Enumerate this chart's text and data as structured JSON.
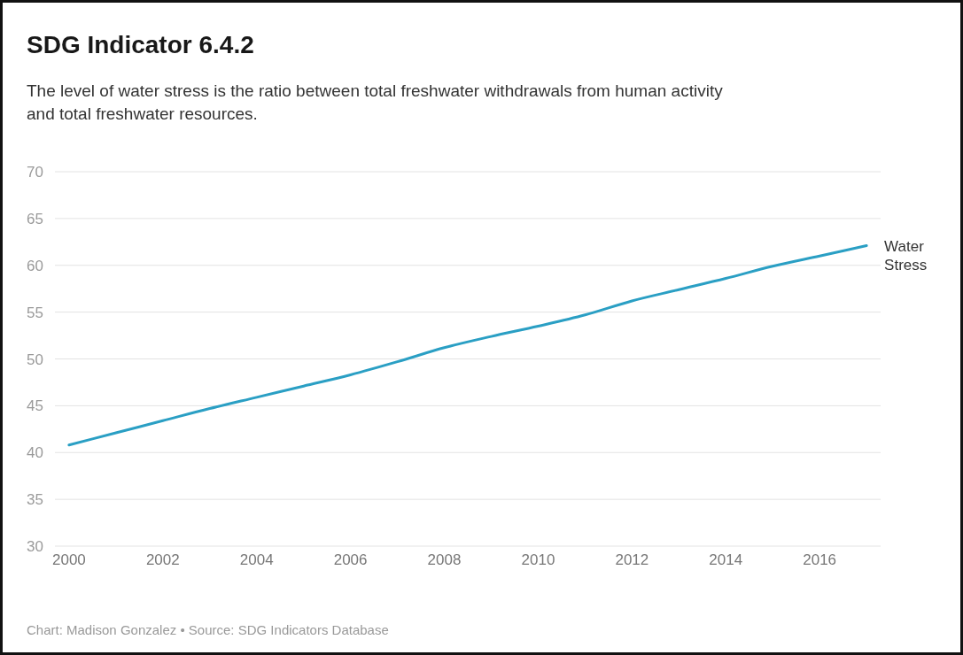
{
  "chart_data": {
    "type": "line",
    "title": "SDG Indicator 6.4.2",
    "subtitle": "The level of water stress is the ratio between total freshwater withdrawals from human activity and total freshwater resources.",
    "x": [
      2000,
      2001,
      2002,
      2003,
      2004,
      2005,
      2006,
      2007,
      2008,
      2009,
      2010,
      2011,
      2012,
      2013,
      2014,
      2015,
      2016,
      2017
    ],
    "series": [
      {
        "name": "Water Stress",
        "color": "#2a9fc4",
        "values": [
          40.8,
          42.1,
          43.4,
          44.7,
          45.9,
          47.1,
          48.3,
          49.7,
          51.2,
          52.4,
          53.5,
          54.7,
          56.2,
          57.4,
          58.6,
          59.9,
          61.0,
          62.1
        ]
      }
    ],
    "xlim": [
      1999.7,
      2017.3
    ],
    "xticks": [
      2000,
      2002,
      2004,
      2006,
      2008,
      2010,
      2012,
      2014,
      2016
    ],
    "ylim": [
      30,
      70
    ],
    "yticks": [
      30,
      35,
      40,
      45,
      50,
      55,
      60,
      65,
      70
    ],
    "grid": "y",
    "legend": false,
    "marker": "none",
    "line_style": "solid",
    "annotations": [
      "Chart: Madison Gonzalez • Source: SDG Indicators Database"
    ]
  }
}
